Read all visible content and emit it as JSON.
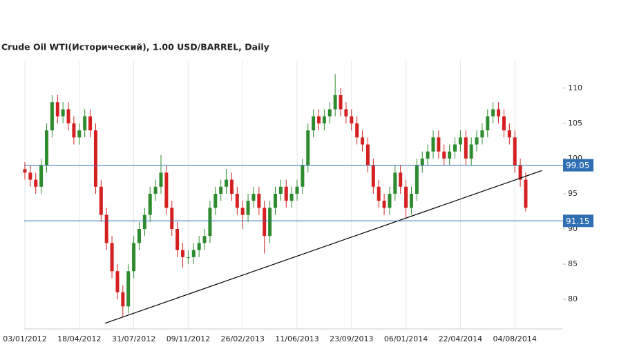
{
  "chart_data": {
    "type": "candlestick",
    "title": "Crude Oil WTI(Исторический), 1.00 USD/BARREL, Daily",
    "categories": [
      "03/01/2012",
      null,
      null,
      null,
      null,
      null,
      null,
      null,
      null,
      null,
      "18/04/2012",
      null,
      null,
      null,
      null,
      null,
      null,
      null,
      null,
      null,
      "31/07/2012",
      null,
      null,
      null,
      null,
      null,
      null,
      null,
      null,
      null,
      "09/11/2012",
      null,
      null,
      null,
      null,
      null,
      null,
      null,
      null,
      null,
      "26/02/2013",
      null,
      null,
      null,
      null,
      null,
      null,
      null,
      null,
      null,
      "11/06/2013",
      null,
      null,
      null,
      null,
      null,
      null,
      null,
      null,
      null,
      "23/09/2013",
      null,
      null,
      null,
      null,
      null,
      null,
      null,
      null,
      null,
      "06/01/2014",
      null,
      null,
      null,
      null,
      null,
      null,
      null,
      null,
      null,
      "22/04/2014",
      null,
      null,
      null,
      null,
      null,
      null,
      null,
      null,
      null,
      "04/08/2014",
      null,
      null
    ],
    "open": [
      98.5,
      98,
      97,
      96,
      99,
      104,
      108,
      106,
      107,
      105,
      103,
      104,
      106,
      104,
      96,
      92,
      88,
      84,
      81,
      79,
      84,
      88,
      90,
      92,
      95,
      96,
      98,
      93,
      90,
      87,
      86,
      86,
      87,
      88,
      89,
      93,
      95,
      96,
      97,
      95,
      93,
      92,
      94,
      95,
      93,
      89,
      93,
      95,
      96,
      94,
      95,
      96,
      99,
      104,
      106,
      105,
      106,
      107,
      109,
      107,
      106,
      105,
      103,
      102,
      99,
      96,
      94,
      93,
      95,
      98,
      96,
      93,
      95,
      99,
      100,
      101,
      103,
      101,
      100,
      101,
      102,
      103,
      100,
      102,
      103,
      104,
      106,
      107,
      106,
      104,
      103,
      99,
      97
    ],
    "high": [
      99.5,
      99,
      98,
      100,
      105,
      109,
      109,
      108,
      108,
      106,
      105,
      107,
      107,
      105,
      97,
      93,
      89,
      85,
      82,
      85,
      89,
      91,
      93,
      96,
      97,
      100.5,
      99,
      94,
      91,
      88,
      87,
      88,
      89,
      90,
      94,
      96,
      97,
      98.5,
      98,
      96,
      94,
      95,
      96,
      96,
      94,
      94,
      96,
      97,
      97,
      96,
      97,
      100,
      105,
      107,
      107,
      107,
      108,
      112,
      110,
      108,
      107,
      106,
      104,
      103,
      100,
      97,
      95,
      96,
      99,
      99,
      97,
      96,
      100,
      101,
      102,
      104,
      104,
      102,
      102,
      103,
      104,
      104,
      103,
      104,
      105,
      107,
      108,
      108,
      107,
      105,
      104,
      100,
      98
    ],
    "low": [
      97,
      96,
      95,
      95,
      98,
      103,
      105,
      105,
      104,
      102,
      102,
      103,
      103,
      95,
      91,
      87,
      83,
      80,
      77.5,
      78,
      83,
      87,
      89,
      91,
      94,
      95,
      92,
      89,
      86,
      84.5,
      85,
      85,
      86,
      87,
      88,
      92,
      94,
      95,
      94,
      92,
      90,
      91,
      93,
      92,
      86.5,
      88,
      92,
      94,
      93,
      93,
      94,
      95,
      98,
      103,
      104,
      104,
      105,
      106,
      106,
      105,
      104,
      102,
      101,
      98,
      95,
      93,
      92,
      92,
      94,
      95,
      91.5,
      92,
      94,
      98,
      99,
      100,
      100,
      99,
      99,
      100,
      101,
      99,
      99,
      101,
      102,
      103,
      105,
      105,
      103,
      102,
      98,
      96,
      92.5
    ],
    "close": [
      98,
      97,
      96,
      99,
      104,
      108,
      106,
      107,
      105,
      103,
      104,
      106,
      104,
      96,
      92,
      88,
      84,
      81,
      79,
      84,
      88,
      90,
      92,
      95,
      96,
      98,
      93,
      90,
      87,
      86,
      86,
      87,
      88,
      89,
      93,
      95,
      96,
      97,
      95,
      93,
      92,
      94,
      95,
      93,
      89,
      93,
      95,
      96,
      94,
      95,
      96,
      99,
      104,
      106,
      105,
      106,
      107,
      109,
      107,
      106,
      105,
      103,
      102,
      99,
      96,
      94,
      93,
      95,
      98,
      96,
      93,
      95,
      99,
      100,
      101,
      103,
      101,
      100,
      101,
      102,
      103,
      100,
      102,
      103,
      104,
      106,
      107,
      106,
      104,
      103,
      99,
      97,
      93
    ],
    "up_color": "#2e8b2e",
    "down_color": "#d42020",
    "ylim": [
      75.8,
      113.9
    ],
    "yticks": [
      80,
      85,
      90,
      95,
      100,
      105,
      110
    ],
    "levels": [
      99.05,
      91.15
    ],
    "level_color": "#2f6fb3",
    "trendline": {
      "x": [
        14.7,
        95
      ],
      "values": [
        76.6,
        98.3
      ]
    },
    "grid": true
  }
}
